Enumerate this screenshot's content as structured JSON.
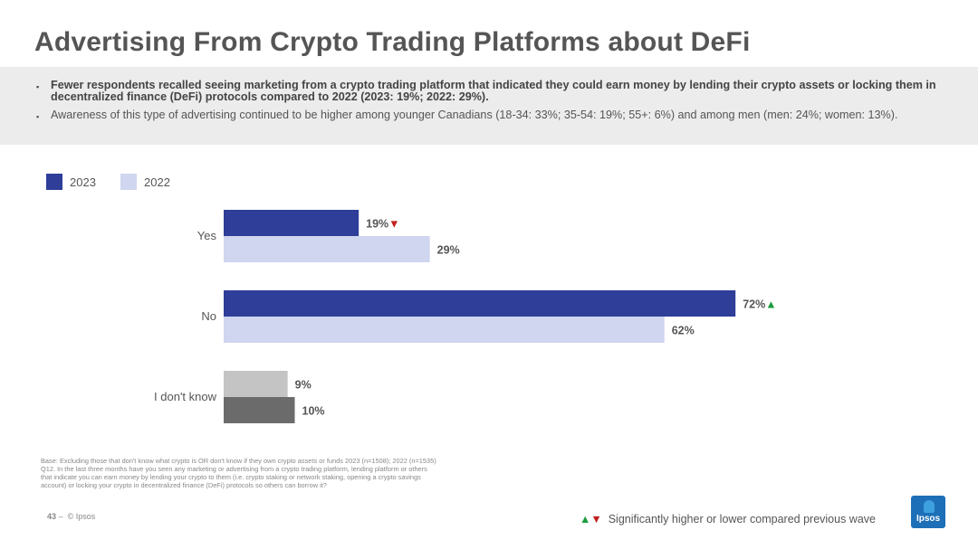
{
  "title": "Advertising From Crypto Trading Platforms about DeFi",
  "bullets": [
    "Fewer respondents recalled seeing marketing from a crypto trading platform that indicated they could earn money by lending their crypto assets or locking them in decentralized finance (DeFi) protocols compared to 2022 (2023: 19%; 2022: 29%).",
    "Awareness of this type of advertising continued to be higher among younger Canadians (18-34: 33%; 35-54: 19%; 55+: 6%) and among men (men: 24%; women: 13%)."
  ],
  "bullet_marker": "▪",
  "legend": [
    {
      "label": "2023",
      "color": "#2e3e99"
    },
    {
      "label": "2022",
      "color": "#d0d6ef"
    }
  ],
  "chart_data": {
    "type": "bar",
    "orientation": "horizontal",
    "categories": [
      "Yes",
      "No",
      "I don't know"
    ],
    "series": [
      {
        "name": "2023",
        "values": [
          19,
          72,
          9
        ],
        "labels": [
          "19%",
          "72%",
          "9%"
        ],
        "color": "#2e3e99",
        "significance": [
          "down",
          "up",
          null
        ]
      },
      {
        "name": "2022",
        "values": [
          29,
          62,
          10
        ],
        "labels": [
          "29%",
          "62%",
          "10%"
        ],
        "color": "#d0d6ef",
        "significance": [
          null,
          null,
          null
        ]
      }
    ],
    "dont_know_colors": {
      "2023": "#c4c4c4",
      "2022": "#6b6b6b"
    },
    "unit": "%",
    "grid": false,
    "legend_position": "top-left"
  },
  "footnote": [
    "Base: Excluding those that don't know what crypto is OR don't know if they own crypto assets or funds 2023 (n=1508); 2022 (n=1535)",
    "Q12. In the last three months have you seen any marketing or advertising from a crypto trading platform, lending platform or others",
    "that indicate you can earn money by lending your crypto to them (i.e. crypto staking or network staking, opening a crypto savings",
    "account) or locking your crypto in decentralized finance (DeFi) protocols so others can borrow it?"
  ],
  "page_number": "43",
  "page_separator": "–",
  "copyright": "© Ipsos",
  "significance_note": "Significantly higher or lower compared previous wave",
  "significance_up_glyph": "▲",
  "significance_down_glyph": "▼",
  "logo_text": "Ipsos",
  "colors": {
    "up": "#1a9c3c",
    "down": "#c0201e"
  }
}
